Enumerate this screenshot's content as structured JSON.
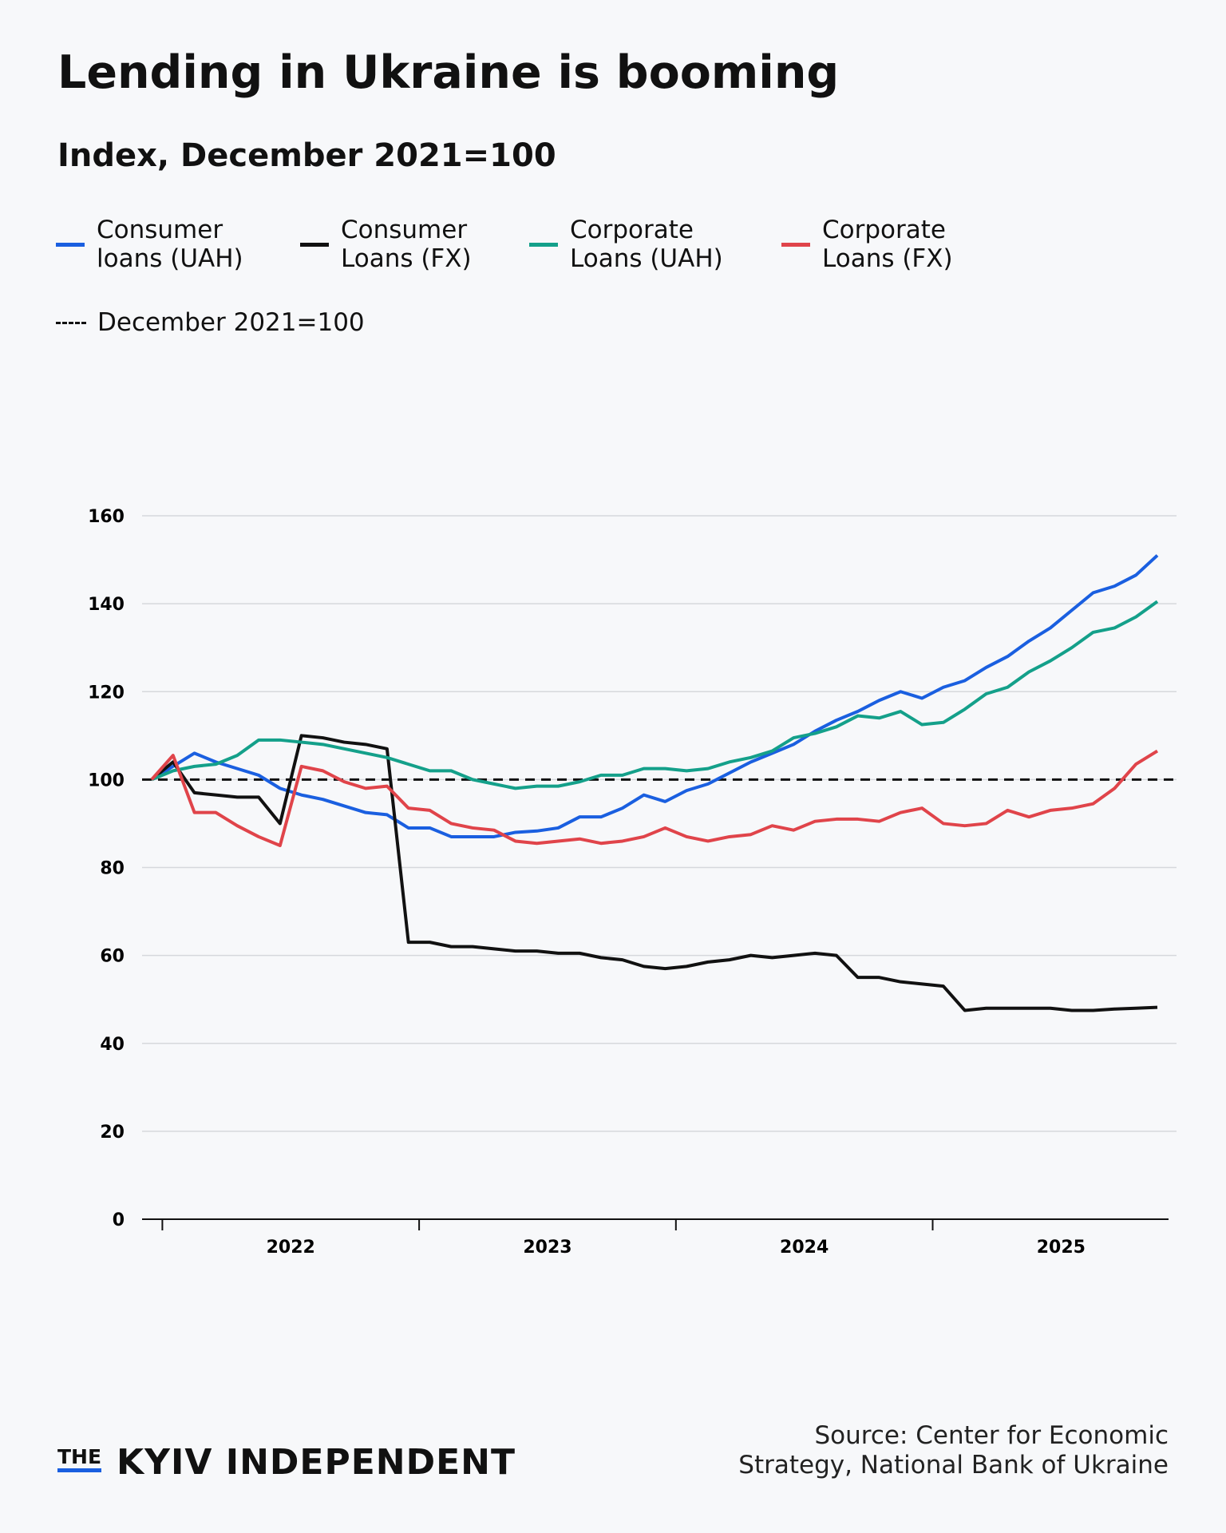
{
  "chart_data": {
    "type": "line",
    "title": "Lending in Ukraine is booming",
    "subtitle": "Index, December 2021=100",
    "series": [
      {
        "name": "Consumer loans (UAH)",
        "color": "#1a5fe0",
        "values": [
          100,
          103,
          106,
          104,
          102.5,
          101,
          98,
          96.5,
          95.5,
          94,
          92.5,
          92,
          89,
          89,
          87,
          87,
          87,
          88,
          88.3,
          89,
          91.5,
          91.5,
          93.5,
          96.5,
          95,
          97.5,
          99,
          101.5,
          104,
          106,
          108,
          111,
          113.5,
          115.5,
          118,
          120,
          118.5,
          121,
          122.5,
          125.5,
          128,
          131.5,
          134.5,
          138.5,
          142.5,
          144,
          146.5,
          151
        ]
      },
      {
        "name": "Consumer Loans (FX)",
        "color": "#111111",
        "values": [
          100,
          104,
          97,
          96.5,
          96,
          96,
          90,
          110,
          109.5,
          108.5,
          108,
          107,
          63,
          63,
          62,
          62,
          61.5,
          61,
          61,
          60.5,
          60.5,
          59.5,
          59,
          57.5,
          57,
          57.5,
          58.5,
          59,
          60,
          59.5,
          60,
          60.5,
          60,
          55,
          55,
          54,
          53.5,
          53,
          47.5,
          48,
          48,
          48,
          48,
          47.5,
          47.5,
          47.8,
          48,
          48.2
        ]
      },
      {
        "name": "Corporate Loans (UAH)",
        "color": "#14a08a",
        "values": [
          100,
          102,
          103,
          103.5,
          105.5,
          109,
          109,
          108.5,
          108,
          107,
          106,
          105,
          103.5,
          102,
          102,
          100,
          99,
          98,
          98.5,
          98.5,
          99.5,
          101,
          101,
          102.5,
          102.5,
          102,
          102.5,
          104,
          105,
          106.5,
          109.5,
          110.5,
          112,
          114.5,
          114,
          115.5,
          112.5,
          113,
          116,
          119.5,
          121,
          124.5,
          127,
          130,
          133.5,
          134.5,
          137,
          140.5
        ]
      },
      {
        "name": "Corporate Loans (FX)",
        "color": "#e0444a",
        "values": [
          100,
          105.5,
          92.5,
          92.5,
          89.5,
          87,
          85,
          103,
          102,
          99.5,
          98,
          98.5,
          93.5,
          93,
          90,
          89,
          88.5,
          86,
          85.5,
          86,
          86.5,
          85.5,
          86,
          87,
          89,
          87,
          86,
          87,
          87.5,
          89.5,
          88.5,
          90.5,
          91,
          91,
          90.5,
          92.5,
          93.5,
          90,
          89.5,
          90,
          93,
          91.5,
          93,
          93.5,
          94.5,
          98,
          103.5,
          106.5
        ]
      }
    ],
    "reference_line": {
      "value": 100,
      "label": "December 2021=100",
      "color": "#111111"
    },
    "ylim": [
      0,
      160
    ],
    "yticks": [
      0,
      20,
      40,
      60,
      80,
      100,
      120,
      140,
      160
    ],
    "grid": true,
    "xlim": [
      -0.5,
      47.5
    ],
    "xticks": [
      {
        "value": 0.5,
        "label": "2022"
      },
      {
        "value": 12.5,
        "label": "2023"
      },
      {
        "value": 24.5,
        "label": "2024"
      },
      {
        "value": 36.5,
        "label": "2025"
      }
    ],
    "source": [
      "Source: Center for Economic",
      "Strategy, National Bank of Ukraine"
    ]
  },
  "logo": {
    "small": "THE",
    "main": "KYIV INDEPENDENT"
  }
}
